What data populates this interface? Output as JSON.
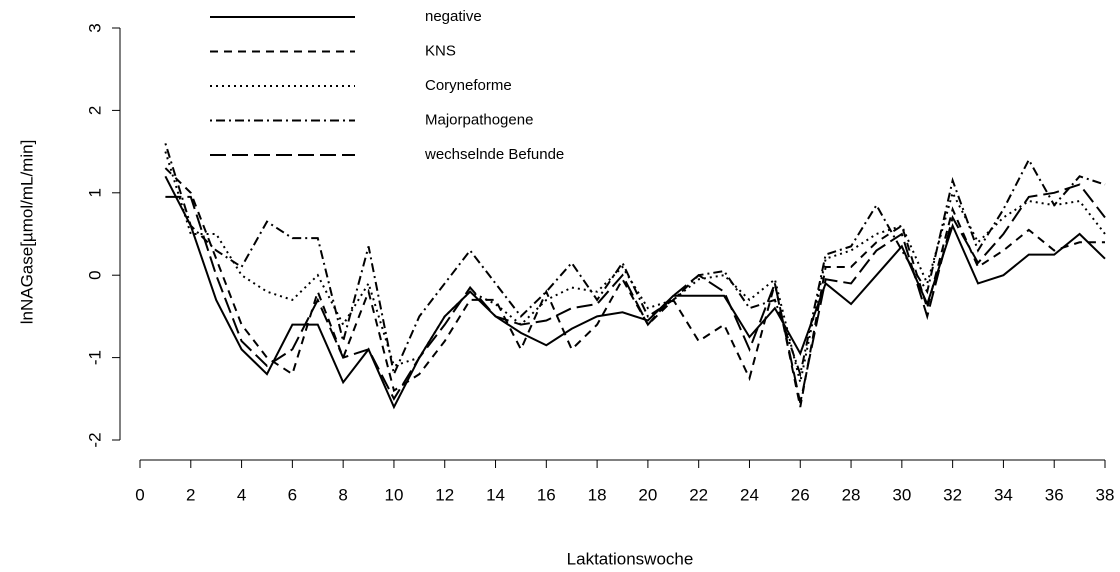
{
  "chart_data": {
    "type": "line",
    "xlabel": "Laktationswoche",
    "ylabel": "lnNAGase[µmol/mL/min]",
    "x": [
      1,
      2,
      3,
      4,
      5,
      6,
      7,
      8,
      9,
      10,
      11,
      12,
      13,
      14,
      15,
      16,
      17,
      18,
      19,
      20,
      21,
      22,
      23,
      24,
      25,
      26,
      27,
      28,
      29,
      30,
      31,
      32,
      33,
      34,
      35,
      36,
      37,
      38
    ],
    "xlim": [
      0,
      38
    ],
    "xticks": [
      0,
      2,
      4,
      6,
      8,
      10,
      12,
      14,
      16,
      18,
      20,
      22,
      24,
      26,
      28,
      30,
      32,
      34,
      36,
      38
    ],
    "ylim": [
      -2,
      3
    ],
    "yticks": [
      -2,
      -1,
      0,
      1,
      2,
      3
    ],
    "series": [
      {
        "name": "negative",
        "color": "#000000",
        "dash": "solid",
        "values": [
          1.2,
          0.6,
          -0.3,
          -0.9,
          -1.2,
          -0.6,
          -0.6,
          -1.3,
          -0.9,
          -1.6,
          -1.0,
          -0.5,
          -0.2,
          -0.5,
          -0.7,
          -0.85,
          -0.65,
          -0.5,
          -0.45,
          -0.55,
          -0.25,
          -0.25,
          -0.25,
          -0.75,
          -0.4,
          -0.95,
          -0.1,
          -0.35,
          0.0,
          0.35,
          -0.35,
          0.6,
          -0.1,
          0.0,
          0.25,
          0.25,
          0.5,
          0.2
        ]
      },
      {
        "name": "KNS",
        "color": "#000000",
        "dash": "dashed",
        "values": [
          1.3,
          1.0,
          0.2,
          -0.6,
          -1.0,
          -1.2,
          -0.2,
          -1.0,
          -0.2,
          -1.4,
          -1.2,
          -0.8,
          -0.3,
          -0.3,
          -0.9,
          -0.2,
          -0.9,
          -0.6,
          -0.05,
          -0.6,
          -0.3,
          -0.8,
          -0.6,
          -1.25,
          -0.1,
          -1.6,
          0.1,
          0.1,
          0.4,
          0.6,
          -0.4,
          0.8,
          0.1,
          0.3,
          0.55,
          0.3,
          0.4,
          0.4
        ]
      },
      {
        "name": "Coryneforme",
        "color": "#000000",
        "dash": "dotted",
        "values": [
          1.5,
          0.5,
          0.5,
          0.0,
          -0.2,
          -0.3,
          0.0,
          -0.6,
          -0.1,
          -1.1,
          -1.0,
          -0.5,
          -0.2,
          -0.35,
          -0.6,
          -0.3,
          -0.15,
          -0.2,
          0.1,
          -0.4,
          -0.3,
          -0.05,
          0.0,
          -0.3,
          -0.05,
          -1.3,
          0.2,
          0.3,
          0.5,
          0.6,
          -0.1,
          1.0,
          0.4,
          0.7,
          0.9,
          0.85,
          0.9,
          0.5
        ]
      },
      {
        "name": "Majorpathogene",
        "color": "#000000",
        "dash": "dotdash",
        "values": [
          1.6,
          0.6,
          0.3,
          0.1,
          0.65,
          0.45,
          0.45,
          -0.8,
          0.35,
          -1.2,
          -0.5,
          -0.1,
          0.3,
          -0.1,
          -0.5,
          -0.2,
          0.15,
          -0.3,
          0.15,
          -0.5,
          -0.3,
          0.0,
          0.05,
          -0.4,
          -0.3,
          -1.2,
          0.25,
          0.35,
          0.85,
          0.3,
          -0.2,
          1.15,
          0.3,
          0.8,
          1.4,
          0.85,
          1.2,
          1.1
        ]
      },
      {
        "name": "wechselnde Befunde",
        "color": "#000000",
        "dash": "longdash",
        "values": [
          0.95,
          0.95,
          0.0,
          -0.8,
          -1.1,
          -0.9,
          -0.3,
          -1.0,
          -0.9,
          -1.5,
          -1.0,
          -0.6,
          -0.15,
          -0.5,
          -0.6,
          -0.55,
          -0.4,
          -0.35,
          0.0,
          -0.6,
          -0.25,
          0.0,
          -0.2,
          -0.9,
          -0.1,
          -1.55,
          -0.05,
          -0.1,
          0.3,
          0.5,
          -0.5,
          0.7,
          0.15,
          0.5,
          0.95,
          1.0,
          1.1,
          0.7
        ]
      }
    ]
  }
}
